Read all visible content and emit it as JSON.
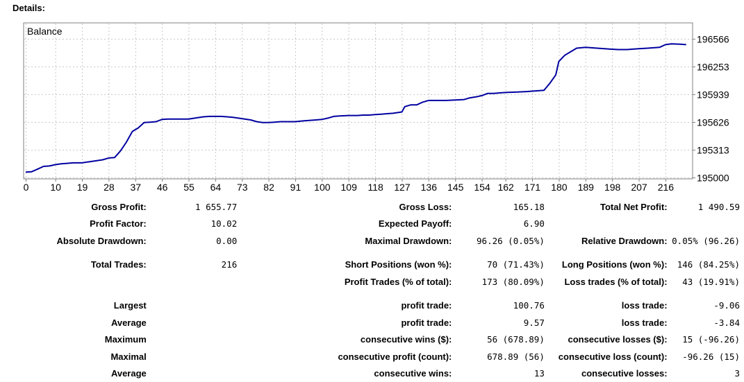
{
  "details_label": "Details:",
  "chart_data": {
    "type": "line",
    "title": "Balance",
    "x_ticks": [
      0,
      10,
      19,
      28,
      37,
      46,
      55,
      64,
      73,
      82,
      91,
      100,
      109,
      118,
      127,
      136,
      145,
      154,
      162,
      171,
      180,
      189,
      198,
      207,
      216
    ],
    "y_ticks": [
      195000,
      195313,
      195626,
      195939,
      196253,
      196566
    ],
    "xlim": [
      0,
      225
    ],
    "ylim": [
      195000,
      196566
    ],
    "grid": true,
    "series": [
      {
        "color": "#0000a0",
        "x": [
          0,
          2,
          4,
          6,
          8,
          10,
          12,
          14,
          16,
          19,
          22,
          24,
          26,
          28,
          30,
          32,
          34,
          36,
          38,
          40,
          42,
          44,
          46,
          48,
          50,
          52,
          55,
          58,
          60,
          62,
          64,
          66,
          68,
          70,
          73,
          76,
          78,
          80,
          82,
          84,
          86,
          88,
          91,
          94,
          96,
          98,
          100,
          102,
          104,
          106,
          109,
          112,
          114,
          116,
          118,
          120,
          122,
          124,
          127,
          128,
          130,
          132,
          134,
          136,
          138,
          140,
          142,
          145,
          148,
          150,
          152,
          154,
          156,
          158,
          160,
          162,
          166,
          169,
          171,
          175,
          177,
          179,
          180,
          182,
          184,
          186,
          189,
          193,
          197,
          200,
          203,
          207,
          210,
          212,
          214,
          216,
          218,
          221,
          223
        ],
        "y": [
          195060,
          195065,
          195095,
          195125,
          195130,
          195145,
          195155,
          195160,
          195165,
          195165,
          195180,
          195190,
          195200,
          195220,
          195225,
          195300,
          195400,
          195520,
          195560,
          195620,
          195625,
          195630,
          195655,
          195660,
          195660,
          195660,
          195660,
          195675,
          195685,
          195690,
          195690,
          195690,
          195685,
          195680,
          195665,
          195650,
          195630,
          195620,
          195620,
          195625,
          195630,
          195630,
          195630,
          195640,
          195645,
          195650,
          195655,
          195670,
          195690,
          195695,
          195700,
          195700,
          195705,
          195705,
          195710,
          195715,
          195720,
          195725,
          195740,
          195800,
          195820,
          195820,
          195850,
          195870,
          195870,
          195870,
          195870,
          195875,
          195880,
          195900,
          195910,
          195925,
          195950,
          195950,
          195955,
          195960,
          195965,
          195970,
          195975,
          195985,
          196065,
          196160,
          196310,
          196380,
          196420,
          196460,
          196470,
          196460,
          196450,
          196445,
          196445,
          196455,
          196460,
          196465,
          196470,
          196500,
          196510,
          196505,
          196500
        ]
      }
    ]
  },
  "rows": [
    [
      "",
      "Gross Profit:",
      "1 655.77",
      "Gross Loss:",
      "165.18",
      "Total Net Profit:",
      "1 490.59"
    ],
    [
      "",
      "Profit Factor:",
      "10.02",
      "Expected Payoff:",
      "6.90",
      "",
      ""
    ],
    [
      "",
      "Absolute Drawdown:",
      "0.00",
      "Maximal Drawdown:",
      "96.26 (0.05%)",
      "Relative Drawdown:",
      "0.05% (96.26)"
    ],
    [
      "gap"
    ],
    [
      "",
      "Total Trades:",
      "216",
      "Short Positions (won %):",
      "70 (71.43%)",
      "Long Positions (won %):",
      "146 (84.25%)"
    ],
    [
      "",
      "",
      "",
      "Profit Trades (% of total):",
      "173 (80.09%)",
      "Loss trades (% of total):",
      "43 (19.91%)"
    ],
    [
      "gap"
    ],
    [
      "",
      "Largest",
      "",
      "profit trade:",
      "100.76",
      "loss trade:",
      "-9.06"
    ],
    [
      "",
      "Average",
      "",
      "profit trade:",
      "9.57",
      "loss trade:",
      "-3.84"
    ],
    [
      "",
      "Maximum",
      "",
      "consecutive wins ($):",
      "56 (678.89)",
      "consecutive losses ($):",
      "15 (-96.26)"
    ],
    [
      "",
      "Maximal",
      "",
      "consecutive profit (count):",
      "678.89 (56)",
      "consecutive loss (count):",
      "-96.26 (15)"
    ],
    [
      "",
      "Average",
      "",
      "consecutive wins:",
      "13",
      "consecutive losses:",
      "3"
    ]
  ]
}
